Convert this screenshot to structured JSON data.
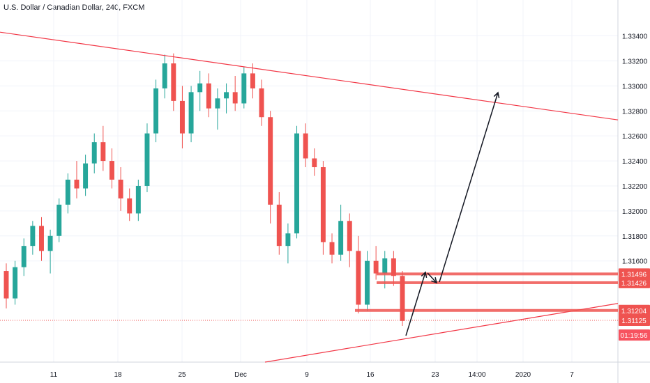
{
  "header": {
    "title": "U.S. Dollar / Canadian Dollar, 240, FXCM"
  },
  "colors": {
    "up": "#26a69a",
    "down": "#ef5350",
    "trendline": "#f23645",
    "zone": "#ef5350",
    "arrow": "#131722",
    "grid": "#f0f3fa",
    "axis_text": "#131722"
  },
  "chart_data": {
    "type": "candlestick",
    "title": "U.S. Dollar / Canadian Dollar, 240, FXCM",
    "ylim": [
      1.3098,
      1.3352
    ],
    "y_ticks": [
      "1.33400",
      "1.33200",
      "1.33000",
      "1.32800",
      "1.32600",
      "1.32400",
      "1.32200",
      "1.32000",
      "1.31800",
      "1.31600"
    ],
    "x_ticks": [
      "11",
      "18",
      "25",
      "Dec",
      "9",
      "16",
      "23",
      "14:00",
      "2020",
      "7"
    ],
    "grid": true,
    "price_labels": [
      {
        "text": "1.31496",
        "price": 1.31496,
        "style": "zone"
      },
      {
        "text": "1.31426",
        "price": 1.31426,
        "style": "zone"
      },
      {
        "text": "1.31204",
        "price": 1.31204,
        "style": "zone"
      },
      {
        "text": "1.31125",
        "price": 1.31125,
        "style": "current"
      },
      {
        "text": "01:19:56",
        "price": 1.31007,
        "style": "timer"
      }
    ],
    "resistance_trendline": {
      "start": [
        "4 Nov",
        1.3343
      ],
      "end": [
        "23 Dec",
        1.3273
      ]
    },
    "support_trendline": {
      "start": [
        "3 Dec",
        1.3086
      ],
      "end": [
        "29 Dec",
        1.3126
      ]
    },
    "horizontal_zones": [
      {
        "price": 1.31496,
        "from": "16 Dec"
      },
      {
        "price": 1.31426,
        "from": "16 Dec"
      },
      {
        "price": 1.31204,
        "from": "14 Dec"
      }
    ],
    "current_price": 1.31125,
    "arrows": [
      {
        "from": [
          "18 Dec",
          1.31005
        ],
        "to": [
          "20 Dec",
          1.31478
        ]
      },
      {
        "from": [
          "21 Dec",
          1.31432
        ],
        "to": [
          "21 Dec",
          1.31426
        ]
      },
      {
        "from": [
          "21 Dec",
          1.31432
        ],
        "to": [
          "25 Dec",
          1.32853
        ]
      }
    ],
    "candles_approx": [
      [
        1.3152,
        1.3158,
        1.3122,
        1.313
      ],
      [
        1.313,
        1.316,
        1.3125,
        1.3155
      ],
      [
        1.3155,
        1.3178,
        1.3148,
        1.3172
      ],
      [
        1.3172,
        1.3192,
        1.3165,
        1.3188
      ],
      [
        1.3188,
        1.3195,
        1.316,
        1.3168
      ],
      [
        1.3168,
        1.3185,
        1.315,
        1.318
      ],
      [
        1.318,
        1.321,
        1.3175,
        1.3205
      ],
      [
        1.3205,
        1.323,
        1.3198,
        1.3225
      ],
      [
        1.3225,
        1.324,
        1.321,
        1.3218
      ],
      [
        1.3218,
        1.3245,
        1.3212,
        1.3238
      ],
      [
        1.3238,
        1.3262,
        1.323,
        1.3255
      ],
      [
        1.3255,
        1.3268,
        1.3232,
        1.324
      ],
      [
        1.324,
        1.325,
        1.3218,
        1.3225
      ],
      [
        1.3225,
        1.3235,
        1.32,
        1.321
      ],
      [
        1.321,
        1.3218,
        1.3192,
        1.3198
      ],
      [
        1.3198,
        1.3225,
        1.3192,
        1.322
      ],
      [
        1.322,
        1.327,
        1.3215,
        1.3262
      ],
      [
        1.3262,
        1.3305,
        1.3255,
        1.3298
      ],
      [
        1.3298,
        1.3325,
        1.329,
        1.3318
      ],
      [
        1.3318,
        1.3326,
        1.328,
        1.3288
      ],
      [
        1.3288,
        1.33,
        1.325,
        1.3262
      ],
      [
        1.3262,
        1.33,
        1.3255,
        1.3295
      ],
      [
        1.3295,
        1.3312,
        1.328,
        1.3302
      ],
      [
        1.3302,
        1.331,
        1.3275,
        1.3282
      ],
      [
        1.3282,
        1.3298,
        1.3265,
        1.329
      ],
      [
        1.329,
        1.3302,
        1.3278,
        1.3295
      ],
      [
        1.3295,
        1.3308,
        1.328,
        1.3286
      ],
      [
        1.3286,
        1.3315,
        1.3282,
        1.331
      ],
      [
        1.331,
        1.3318,
        1.329,
        1.3298
      ],
      [
        1.3298,
        1.3305,
        1.3268,
        1.3275
      ],
      [
        1.3275,
        1.328,
        1.319,
        1.3205
      ],
      [
        1.3205,
        1.3215,
        1.3165,
        1.3172
      ],
      [
        1.3172,
        1.319,
        1.3158,
        1.3182
      ],
      [
        1.3182,
        1.3268,
        1.3178,
        1.3262
      ],
      [
        1.3262,
        1.327,
        1.3235,
        1.3242
      ],
      [
        1.3242,
        1.325,
        1.3228,
        1.3235
      ],
      [
        1.3235,
        1.324,
        1.3165,
        1.3175
      ],
      [
        1.3175,
        1.3182,
        1.3158,
        1.3165
      ],
      [
        1.3165,
        1.3205,
        1.316,
        1.3192
      ],
      [
        1.3192,
        1.3198,
        1.3155,
        1.3168
      ],
      [
        1.3168,
        1.318,
        1.3118,
        1.3125
      ],
      [
        1.3125,
        1.3168,
        1.312,
        1.316
      ],
      [
        1.316,
        1.3172,
        1.3145,
        1.315
      ],
      [
        1.315,
        1.3168,
        1.3138,
        1.3162
      ],
      [
        1.3162,
        1.3168,
        1.314,
        1.3148
      ],
      [
        1.3148,
        1.3152,
        1.3108,
        1.3112
      ]
    ]
  }
}
